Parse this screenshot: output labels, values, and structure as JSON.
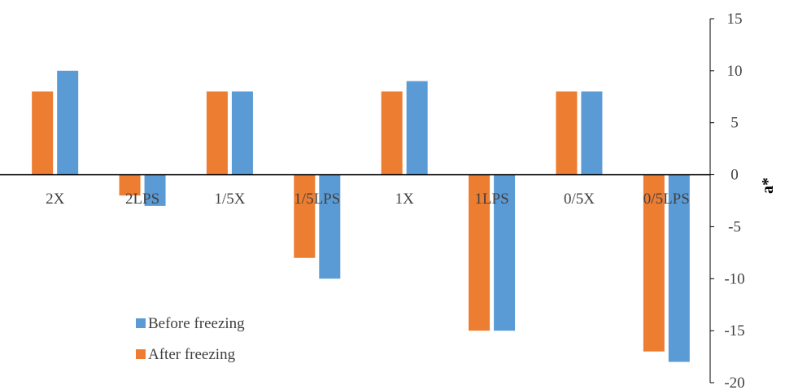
{
  "chart_data": {
    "type": "bar",
    "title": "",
    "xlabel": "",
    "ylabel": "a*",
    "y_axis_side": "right",
    "ylim": [
      -20,
      15
    ],
    "yticks": [
      -20,
      -15,
      -10,
      -5,
      0,
      5,
      10,
      15
    ],
    "grid": false,
    "legend_position": "bottom-left",
    "categories": [
      "2X",
      "2LPS",
      "1/5X",
      "1/5LPS",
      "1X",
      "1LPS",
      "0/5X",
      "0/5LPS"
    ],
    "series": [
      {
        "name": "After freezing",
        "color": "#ED7D31",
        "values": [
          8,
          -2,
          8,
          -8,
          8,
          -15,
          8,
          -17
        ]
      },
      {
        "name": "Before freezing",
        "color": "#5B9BD5",
        "values": [
          10,
          -3,
          8,
          -10,
          9,
          -15,
          8,
          -18
        ]
      }
    ],
    "legend_order": [
      "Before freezing",
      "After freezing"
    ]
  }
}
